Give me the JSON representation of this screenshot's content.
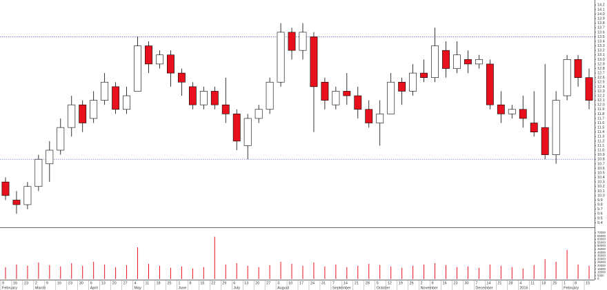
{
  "chart_data": {
    "type": "candlestick",
    "categories": [
      "9",
      "16",
      "23",
      "2",
      "9",
      "16",
      "23",
      "30",
      "6",
      "13",
      "20",
      "27",
      "4",
      "11",
      "18",
      "25",
      "1",
      "8",
      "15",
      "22",
      "29",
      "6",
      "13",
      "20",
      "27",
      "3",
      "10",
      "17",
      "24",
      "31",
      "7",
      "14",
      "21",
      "28",
      "5",
      "12",
      "19",
      "26",
      "2",
      "9",
      "16",
      "23",
      "30",
      "7",
      "14",
      "21",
      "28",
      "4",
      "11",
      "18",
      "25",
      "1",
      "8",
      "15"
    ],
    "months": [
      "February",
      null,
      null,
      "March",
      null,
      null,
      null,
      null,
      "April",
      null,
      null,
      null,
      "May",
      null,
      null,
      null,
      "June",
      null,
      null,
      null,
      null,
      "July",
      null,
      null,
      null,
      "August",
      null,
      null,
      null,
      null,
      "September",
      null,
      null,
      null,
      "October",
      null,
      null,
      null,
      "November",
      null,
      null,
      null,
      null,
      "December",
      null,
      null,
      null,
      "2016",
      null,
      null,
      null,
      "February",
      null,
      null
    ],
    "open": [
      10.3,
      9.9,
      9.8,
      10.2,
      10.7,
      11.0,
      11.5,
      12.0,
      11.7,
      12.1,
      12.4,
      11.9,
      12.3,
      13.3,
      12.9,
      13.1,
      12.7,
      12.4,
      12.0,
      12.3,
      12.0,
      11.8,
      11.1,
      11.7,
      11.9,
      12.5,
      13.6,
      13.2,
      13.5,
      12.5,
      12.0,
      12.3,
      12.2,
      11.9,
      11.6,
      11.8,
      12.5,
      12.3,
      12.7,
      12.6,
      13.2,
      12.8,
      13.0,
      12.9,
      12.9,
      12.0,
      11.8,
      11.9,
      11.6,
      11.5,
      10.9,
      12.2,
      13.0,
      12.6
    ],
    "high": [
      10.4,
      10.1,
      10.3,
      10.9,
      11.2,
      11.7,
      12.2,
      12.1,
      12.3,
      12.7,
      12.5,
      12.4,
      13.5,
      13.4,
      13.2,
      13.2,
      12.8,
      12.5,
      12.4,
      12.4,
      12.6,
      11.9,
      11.8,
      12.0,
      12.6,
      13.8,
      13.7,
      13.8,
      13.6,
      12.6,
      12.4,
      12.7,
      12.4,
      12.1,
      12.1,
      12.7,
      12.6,
      12.9,
      13.0,
      13.7,
      13.4,
      13.4,
      13.2,
      13.1,
      13.0,
      12.3,
      12.0,
      12.2,
      12.3,
      12.9,
      12.3,
      13.1,
      13.1,
      12.8
    ],
    "low": [
      9.9,
      9.6,
      9.7,
      10.1,
      10.3,
      10.9,
      11.3,
      11.4,
      11.6,
      12.0,
      11.8,
      11.8,
      12.3,
      12.7,
      12.8,
      12.4,
      12.2,
      11.9,
      11.9,
      11.9,
      11.6,
      11.0,
      10.8,
      11.6,
      11.8,
      12.4,
      13.0,
      13.0,
      11.4,
      11.9,
      11.9,
      12.0,
      11.7,
      11.5,
      11.1,
      11.8,
      12.0,
      12.2,
      12.5,
      12.5,
      12.6,
      12.7,
      12.7,
      12.8,
      11.9,
      11.6,
      11.7,
      11.5,
      11.3,
      10.8,
      10.7,
      12.1,
      12.4,
      11.9
    ],
    "close": [
      10.0,
      9.8,
      10.2,
      10.8,
      11.0,
      11.5,
      12.0,
      11.6,
      12.1,
      12.5,
      11.9,
      12.2,
      13.3,
      12.9,
      13.1,
      12.7,
      12.5,
      12.0,
      12.3,
      12.0,
      11.8,
      11.2,
      11.7,
      11.9,
      12.5,
      13.6,
      13.2,
      13.6,
      12.4,
      12.1,
      12.3,
      12.2,
      11.9,
      11.6,
      11.8,
      12.5,
      12.3,
      12.7,
      12.6,
      13.3,
      12.8,
      13.1,
      12.9,
      13.0,
      12.0,
      11.8,
      11.9,
      11.7,
      11.4,
      10.9,
      12.1,
      13.0,
      12.6,
      12.1
    ],
    "up_color": "#ffffff",
    "down_color": "#e8101c",
    "ylim": [
      9.3,
      14.25
    ],
    "yticks": [
      9.4,
      9.5,
      9.6,
      9.7,
      9.8,
      9.9,
      {
        "value": 10,
        "label": "10.0"
      },
      10.1,
      10.2,
      10.3,
      10.4,
      10.5,
      10.6,
      10.7,
      10.8,
      10.9,
      {
        "value": 11,
        "label": "11.0"
      },
      11.1,
      11.2,
      11.3,
      11.4,
      11.5,
      11.6,
      11.7,
      11.8,
      11.9,
      {
        "value": 12,
        "label": "12.0"
      },
      12.1,
      12.2,
      12.3,
      12.4,
      12.5,
      12.6,
      12.7,
      12.8,
      12.9,
      {
        "value": 13,
        "label": "13.0"
      },
      13.1,
      13.2,
      13.3,
      13.4,
      13.5,
      13.6,
      13.7,
      13.8,
      13.9,
      {
        "value": 14,
        "label": "14.0"
      },
      14.1,
      14.2
    ],
    "hlines": [
      13.5,
      10.8
    ],
    "volume": {
      "color": "#e8101c",
      "values": [
        18000,
        22000,
        20000,
        25000,
        21000,
        19000,
        24000,
        20000,
        26000,
        22000,
        18000,
        21000,
        48000,
        23000,
        20000,
        17000,
        19000,
        16000,
        18000,
        64000,
        22000,
        24000,
        20000,
        18000,
        21000,
        26000,
        23000,
        20000,
        25000,
        19000,
        22000,
        18000,
        20000,
        23000,
        21000,
        19000,
        17000,
        20000,
        22000,
        24000,
        21000,
        18000,
        19000,
        17000,
        22000,
        20000,
        18000,
        16000,
        21000,
        30000,
        26000,
        44000,
        22000,
        20000
      ],
      "ylim": [
        0,
        72000
      ],
      "yticks": [
        0,
        5000,
        10000,
        15000,
        20000,
        25000,
        30000,
        35000,
        40000,
        45000,
        50000,
        55000,
        60000,
        65000,
        70000
      ]
    }
  }
}
